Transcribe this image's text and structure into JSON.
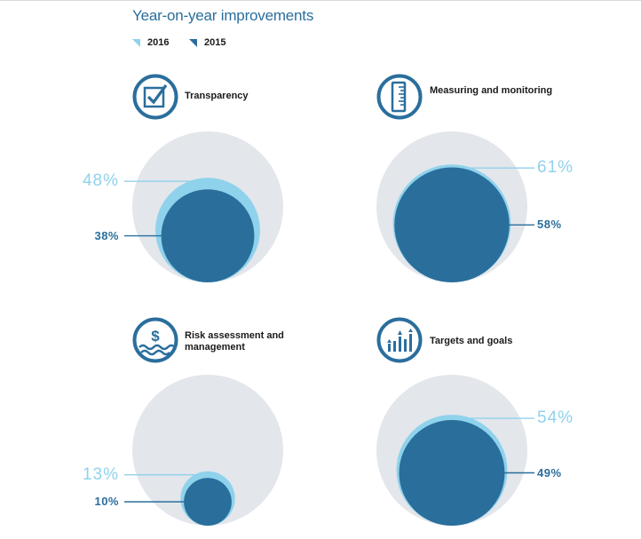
{
  "title": "Year-on-year improvements",
  "legend": [
    {
      "label": "2016",
      "color": "#8fd2ec"
    },
    {
      "label": "2015",
      "color": "#2a6e9c"
    }
  ],
  "colors": {
    "background_circle": "#e3e6eb",
    "series_2016": "#8fd2ec",
    "series_2015": "#2a6e9c"
  },
  "chart_data": [
    {
      "type": "bubble",
      "title": "Transparency",
      "icon": "checkbox-icon",
      "series": [
        {
          "name": "2016",
          "values": [
            48
          ]
        },
        {
          "name": "2015",
          "values": [
            38
          ]
        }
      ],
      "labels": [
        "48%",
        "38%"
      ],
      "max": 100
    },
    {
      "type": "bubble",
      "title": "Measuring and monitoring",
      "icon": "ruler-gauge-icon",
      "series": [
        {
          "name": "2016",
          "values": [
            61
          ]
        },
        {
          "name": "2015",
          "values": [
            58
          ]
        }
      ],
      "labels": [
        "61%",
        "58%"
      ],
      "max": 100
    },
    {
      "type": "bubble",
      "title": "Risk assessment and management",
      "icon": "dollar-wave-icon",
      "series": [
        {
          "name": "2016",
          "values": [
            13
          ]
        },
        {
          "name": "2015",
          "values": [
            10
          ]
        }
      ],
      "labels": [
        "13%",
        "10%"
      ],
      "max": 100
    },
    {
      "type": "bubble",
      "title": "Targets and goals",
      "icon": "growth-bars-icon",
      "series": [
        {
          "name": "2016",
          "values": [
            54
          ]
        },
        {
          "name": "2015",
          "values": [
            49
          ]
        }
      ],
      "labels": [
        "54%",
        "49%"
      ],
      "max": 100
    }
  ]
}
